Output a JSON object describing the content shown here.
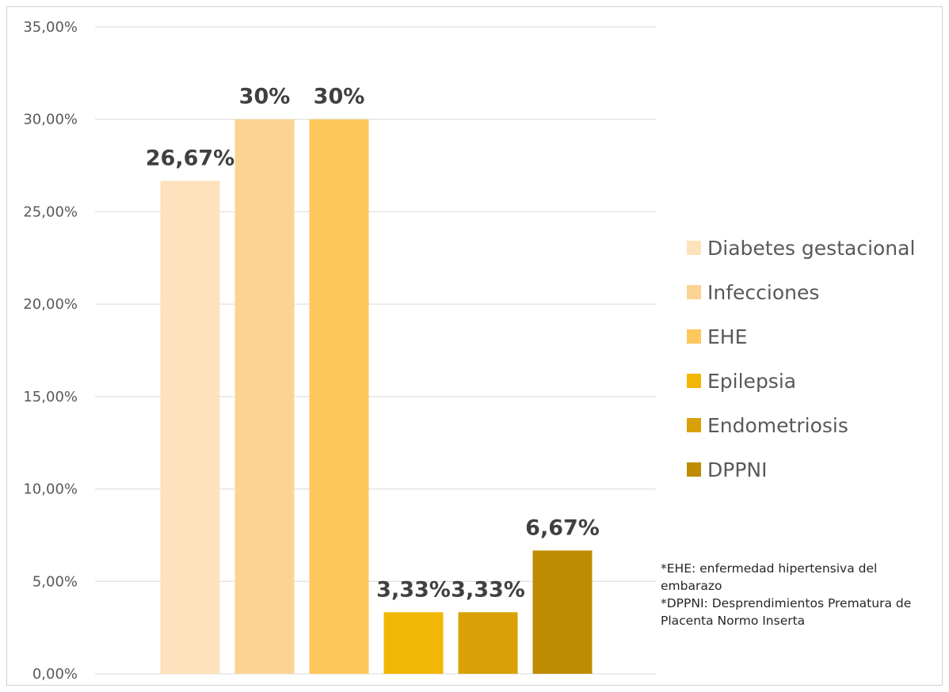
{
  "chart_data": {
    "type": "bar",
    "categories": [
      "Diabetes gestacional",
      "Infecciones",
      "EHE",
      "Epilepsia",
      "Endometriosis",
      "DPPNI"
    ],
    "values": [
      26.67,
      30,
      30,
      3.33,
      3.33,
      6.67
    ],
    "data_labels": [
      "26,67%",
      "30%",
      "30%",
      "3,33%",
      "3,33%",
      "6,67%"
    ],
    "colors": [
      "#FDE2BB",
      "#FDD394",
      "#FDC75B",
      "#F2B705",
      "#D9A106",
      "#BE8C02"
    ],
    "ylim": [
      0,
      35
    ],
    "y_ticks": [
      0,
      5,
      10,
      15,
      20,
      25,
      30,
      35
    ],
    "y_tick_labels": [
      "0,00%",
      "5,00%",
      "10,00%",
      "15,00%",
      "20,00%",
      "25,00%",
      "30,00%",
      "35,00%"
    ],
    "grid": true,
    "legend_position": "right",
    "title": "",
    "xlabel": "",
    "ylabel": ""
  },
  "notes": [
    "*EHE: enfermedad hipertensiva del embarazo",
    "*DPPNI: Desprendimientos Prematura de Placenta Normo Inserta"
  ]
}
